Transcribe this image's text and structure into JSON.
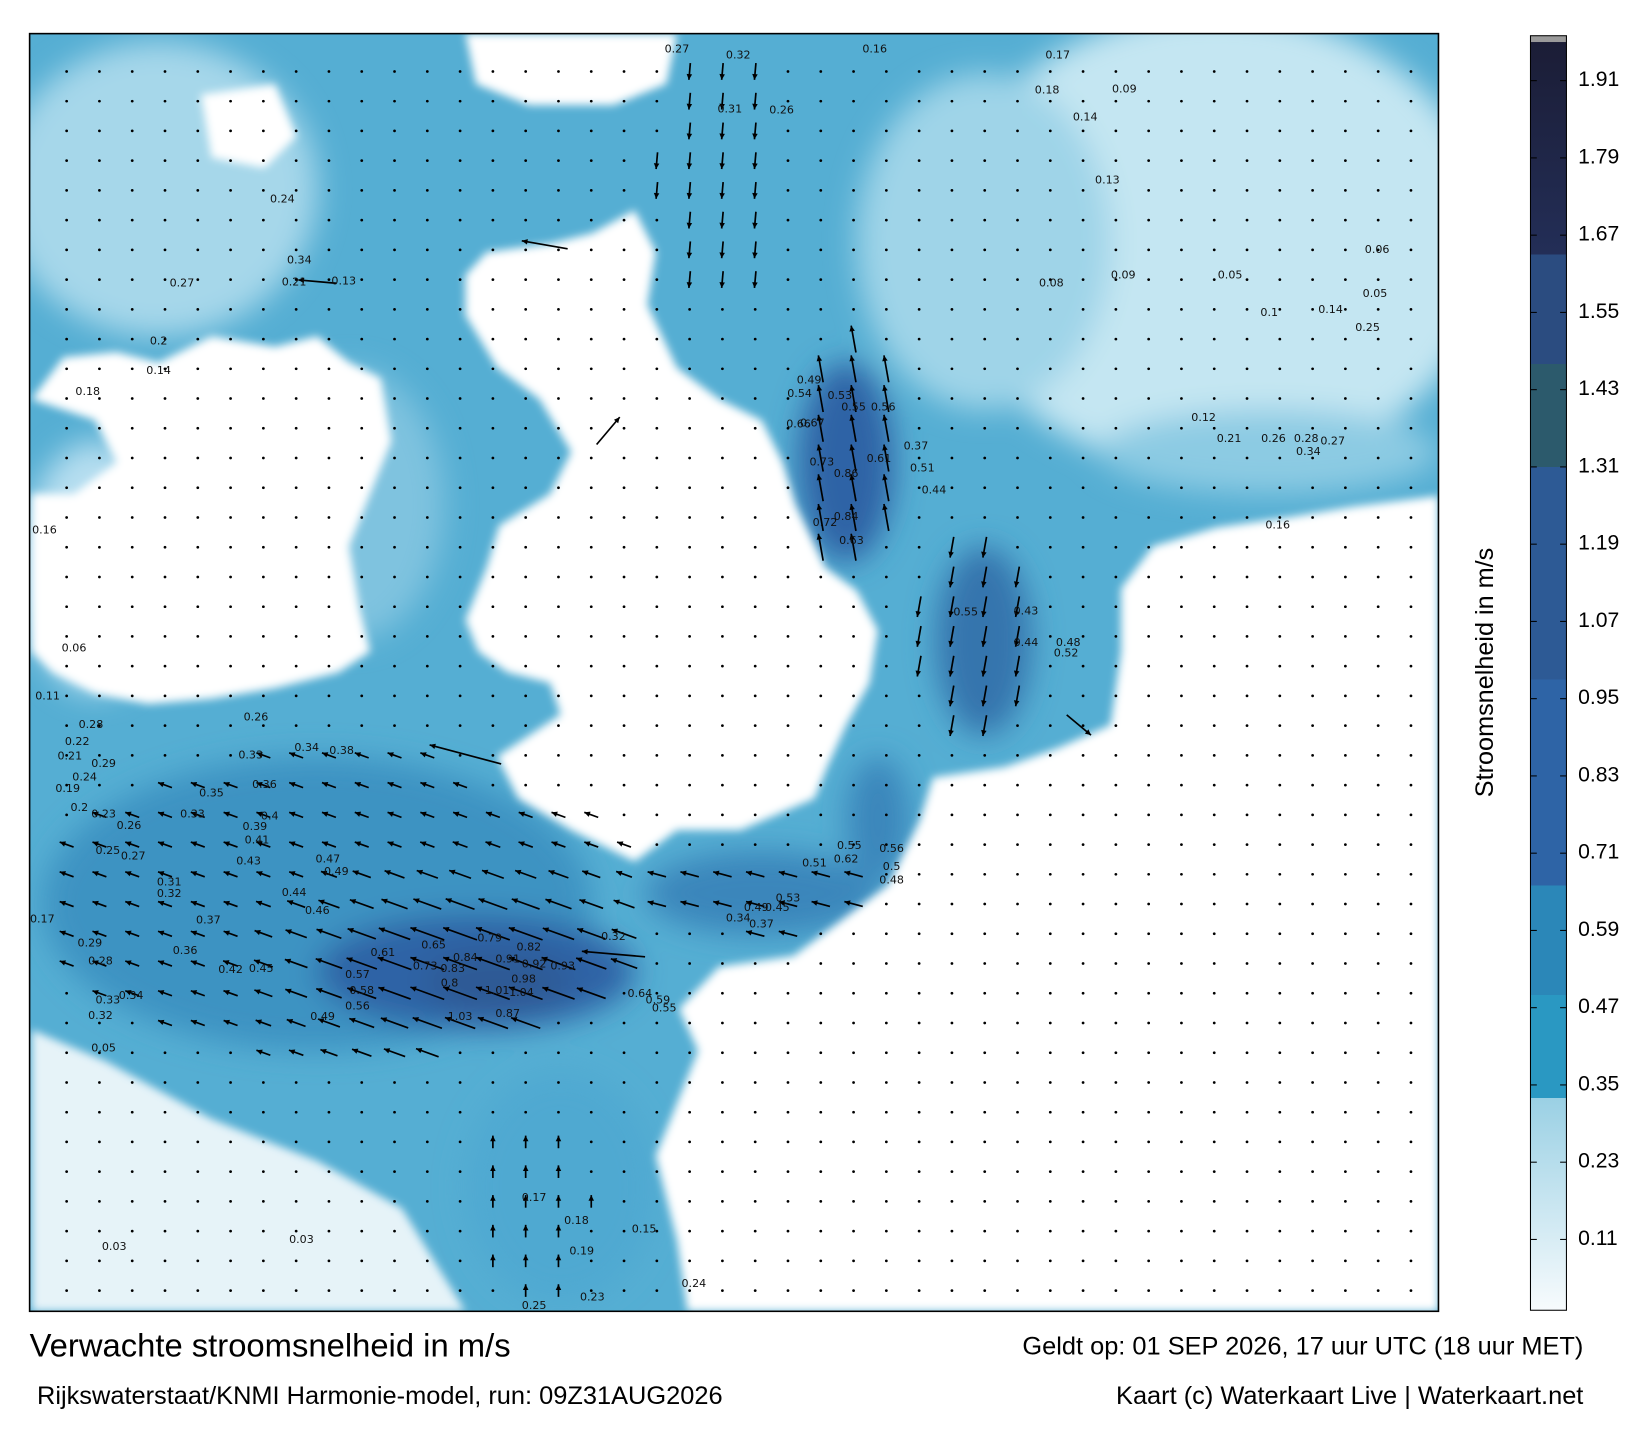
{
  "map": {
    "legend": {
      "title": "Stroomsnelheid in m/s",
      "range": [
        0,
        1.97
      ],
      "ticks": [
        0.11,
        0.23,
        0.35,
        0.47,
        0.59,
        0.71,
        0.83,
        0.95,
        1.07,
        1.19,
        1.31,
        1.43,
        1.55,
        1.67,
        1.79,
        1.91
      ],
      "color_stops": [
        {
          "value": 0,
          "color": "#f7fbfd"
        },
        {
          "value": 0.33,
          "color": "#9ad0e4"
        },
        {
          "value": 0.33,
          "color": "#2a98c2"
        },
        {
          "value": 0.49,
          "color": "#2a98c2"
        },
        {
          "value": 0.49,
          "color": "#2b87b8"
        },
        {
          "value": 0.66,
          "color": "#2b87b8"
        },
        {
          "value": 0.66,
          "color": "#2e64a6"
        },
        {
          "value": 0.98,
          "color": "#2e64a6"
        },
        {
          "value": 0.98,
          "color": "#2d5a95"
        },
        {
          "value": 1.31,
          "color": "#2d5a95"
        },
        {
          "value": 1.31,
          "color": "#2c5a6c"
        },
        {
          "value": 1.47,
          "color": "#2c5a6c"
        },
        {
          "value": 1.47,
          "color": "#2b4c80"
        },
        {
          "value": 1.64,
          "color": "#2b4c80"
        },
        {
          "value": 1.64,
          "color": "#232e57"
        },
        {
          "value": 1.97,
          "color": "#1b1d36"
        }
      ]
    },
    "speed_labels": [
      0.82,
      0.93,
      0.92,
      0.91,
      0.98,
      1.01,
      1.04,
      1.03,
      0.87,
      0.79,
      0.84,
      0.65,
      0.61,
      0.57,
      0.58,
      0.56,
      0.49,
      0.45,
      0.42,
      0.36,
      0.37,
      0.46,
      0.44,
      0.47,
      0.49,
      0.43,
      0.41,
      0.39,
      0.4,
      0.36,
      0.35,
      0.33,
      0.38,
      0.34,
      0.33,
      0.26,
      0.29,
      0.24,
      0.2,
      0.23,
      0.26,
      0.25,
      0.27,
      0.31,
      0.32,
      0.17,
      0.29,
      0.28,
      0.33,
      0.34,
      0.32,
      0.05,
      0.86,
      0.73,
      0.67,
      0.66,
      0.84,
      0.72,
      0.63,
      0.61,
      0.55,
      0.53,
      0.56,
      0.49,
      0.54,
      0.51,
      0.44,
      0.37,
      0.55,
      0.43,
      0.44,
      0.48,
      0.52,
      0.62,
      0.55,
      0.51,
      0.56,
      0.5,
      0.48,
      0.53,
      0.49,
      0.45,
      0.37,
      0.34,
      0.64,
      0.59,
      0.55,
      0.32,
      0.24,
      0.23,
      0.25,
      0.03,
      0.03,
      0.15,
      0.18,
      0.19,
      0.17,
      0.16,
      0.32,
      0.27,
      0.16,
      0.26,
      0.31,
      0.17,
      0.09,
      0.1,
      0.14,
      0.25,
      0.05,
      0.12,
      0.21,
      0.26,
      0.28,
      0.34,
      0.27,
      0.06,
      0.08,
      0.09,
      0.05,
      0.13,
      0.14,
      0.18,
      0.21,
      0.13,
      0.24,
      0.34,
      0.27,
      0.2,
      0.14,
      0.18,
      0.16,
      0.06,
      0.11,
      0.28,
      0.22,
      0.21,
      0.19,
      0.73,
      0.83,
      0.8
    ]
  },
  "footer": {
    "title": "Verwachte stroomsnelheid in m/s",
    "valid_time": "Geldt op: 01 SEP 2026, 17 uur UTC (18 uur MET)",
    "model_run": "Rijkswaterstaat/KNMI Harmonie-model, run: 09Z31AUG2026",
    "credit": "Kaart (c) Waterkaart Live | Waterkaart.net"
  }
}
